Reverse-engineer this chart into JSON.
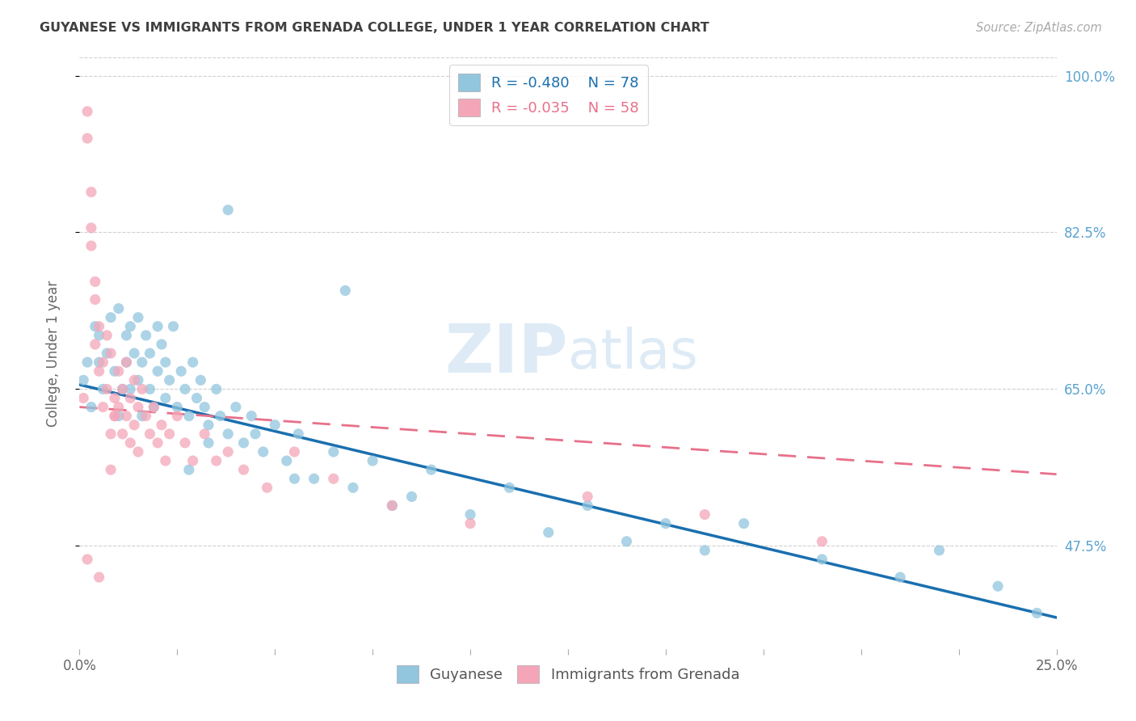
{
  "title": "GUYANESE VS IMMIGRANTS FROM GRENADA COLLEGE, UNDER 1 YEAR CORRELATION CHART",
  "source": "Source: ZipAtlas.com",
  "ylabel": "College, Under 1 year",
  "legend_label1": "Guyanese",
  "legend_label2": "Immigrants from Grenada",
  "legend_entry1_r": "R = -0.480",
  "legend_entry1_n": "N = 78",
  "legend_entry2_r": "R = -0.035",
  "legend_entry2_n": "N = 58",
  "x_min": 0.0,
  "x_max": 0.25,
  "y_min": 0.36,
  "y_max": 1.02,
  "y_ticks": [
    0.475,
    0.65,
    0.825,
    1.0
  ],
  "y_tick_labels": [
    "47.5%",
    "65.0%",
    "82.5%",
    "100.0%"
  ],
  "blue_color": "#92c5de",
  "pink_color": "#f4a6b8",
  "blue_line_color": "#1a6faf",
  "pink_line_color": "#e8708a",
  "background_color": "#ffffff",
  "grid_color": "#d0d0d0",
  "title_color": "#404040",
  "right_axis_color": "#5ba3d0",
  "scatter_alpha": 0.75,
  "scatter_size": 90,
  "blue_line_x0": 0.0,
  "blue_line_y0": 0.655,
  "blue_line_x1": 0.25,
  "blue_line_y1": 0.395,
  "pink_line_x0": 0.0,
  "pink_line_y0": 0.63,
  "pink_line_x1": 0.25,
  "pink_line_y1": 0.555,
  "blue_scatter_x": [
    0.001,
    0.002,
    0.003,
    0.004,
    0.005,
    0.005,
    0.006,
    0.007,
    0.008,
    0.009,
    0.01,
    0.01,
    0.011,
    0.012,
    0.012,
    0.013,
    0.013,
    0.014,
    0.015,
    0.015,
    0.016,
    0.016,
    0.017,
    0.018,
    0.018,
    0.019,
    0.02,
    0.02,
    0.021,
    0.022,
    0.022,
    0.023,
    0.024,
    0.025,
    0.026,
    0.027,
    0.028,
    0.029,
    0.03,
    0.031,
    0.032,
    0.033,
    0.035,
    0.036,
    0.038,
    0.04,
    0.042,
    0.044,
    0.047,
    0.05,
    0.053,
    0.056,
    0.06,
    0.065,
    0.07,
    0.075,
    0.08,
    0.09,
    0.1,
    0.11,
    0.12,
    0.13,
    0.14,
    0.15,
    0.16,
    0.17,
    0.19,
    0.21,
    0.22,
    0.235,
    0.245,
    0.038,
    0.045,
    0.055,
    0.068,
    0.085,
    0.033,
    0.028
  ],
  "blue_scatter_y": [
    0.66,
    0.68,
    0.63,
    0.72,
    0.68,
    0.71,
    0.65,
    0.69,
    0.73,
    0.67,
    0.62,
    0.74,
    0.65,
    0.71,
    0.68,
    0.72,
    0.65,
    0.69,
    0.66,
    0.73,
    0.68,
    0.62,
    0.71,
    0.65,
    0.69,
    0.63,
    0.72,
    0.67,
    0.7,
    0.64,
    0.68,
    0.66,
    0.72,
    0.63,
    0.67,
    0.65,
    0.62,
    0.68,
    0.64,
    0.66,
    0.63,
    0.61,
    0.65,
    0.62,
    0.6,
    0.63,
    0.59,
    0.62,
    0.58,
    0.61,
    0.57,
    0.6,
    0.55,
    0.58,
    0.54,
    0.57,
    0.52,
    0.56,
    0.51,
    0.54,
    0.49,
    0.52,
    0.48,
    0.5,
    0.47,
    0.5,
    0.46,
    0.44,
    0.47,
    0.43,
    0.4,
    0.85,
    0.6,
    0.55,
    0.76,
    0.53,
    0.59,
    0.56
  ],
  "pink_scatter_x": [
    0.001,
    0.002,
    0.002,
    0.003,
    0.003,
    0.004,
    0.004,
    0.005,
    0.005,
    0.006,
    0.006,
    0.007,
    0.007,
    0.008,
    0.008,
    0.009,
    0.009,
    0.01,
    0.01,
    0.011,
    0.011,
    0.012,
    0.012,
    0.013,
    0.013,
    0.014,
    0.014,
    0.015,
    0.015,
    0.016,
    0.017,
    0.018,
    0.019,
    0.02,
    0.021,
    0.022,
    0.023,
    0.025,
    0.027,
    0.029,
    0.032,
    0.035,
    0.038,
    0.042,
    0.048,
    0.055,
    0.065,
    0.08,
    0.1,
    0.13,
    0.16,
    0.19,
    0.008,
    0.009,
    0.003,
    0.004,
    0.002,
    0.005
  ],
  "pink_scatter_y": [
    0.64,
    0.93,
    0.96,
    0.87,
    0.81,
    0.75,
    0.7,
    0.67,
    0.72,
    0.63,
    0.68,
    0.71,
    0.65,
    0.6,
    0.69,
    0.64,
    0.62,
    0.67,
    0.63,
    0.65,
    0.6,
    0.68,
    0.62,
    0.64,
    0.59,
    0.66,
    0.61,
    0.63,
    0.58,
    0.65,
    0.62,
    0.6,
    0.63,
    0.59,
    0.61,
    0.57,
    0.6,
    0.62,
    0.59,
    0.57,
    0.6,
    0.57,
    0.58,
    0.56,
    0.54,
    0.58,
    0.55,
    0.52,
    0.5,
    0.53,
    0.51,
    0.48,
    0.56,
    0.62,
    0.83,
    0.77,
    0.46,
    0.44
  ],
  "watermark_zip_color": "#c8dff0",
  "watermark_atlas_color": "#c8dff0"
}
